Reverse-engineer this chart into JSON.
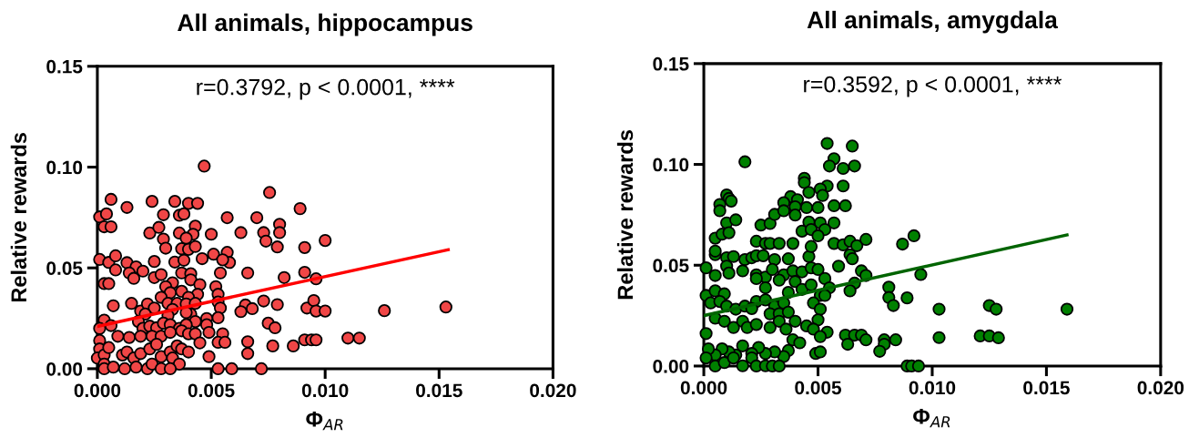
{
  "chart_data": [
    {
      "type": "scatter",
      "title": "All animals, hippocampus",
      "xlabel": "Φ$_{AR}$",
      "ylabel": "Relative rewards",
      "xlim": [
        0,
        0.02
      ],
      "ylim": [
        0,
        0.15
      ],
      "xticks": [
        {
          "value": 0,
          "label": "0.000"
        },
        {
          "value": 0.005,
          "label": "0.005"
        },
        {
          "value": 0.01,
          "label": "0.010"
        },
        {
          "value": 0.015,
          "label": "0.015"
        },
        {
          "value": 0.02,
          "label": "0.020"
        }
      ],
      "yticks": [
        {
          "value": 0,
          "label": "0.00"
        },
        {
          "value": 0.05,
          "label": "0.05"
        },
        {
          "value": 0.1,
          "label": "0.10"
        },
        {
          "value": 0.15,
          "label": "0.15"
        }
      ],
      "annotations": [
        "r=0.3792, p < 0.0001, ****"
      ],
      "series": [
        {
          "marker": "circle",
          "color": "#f04646",
          "x": [
            0.00469,
            0.00756,
            0.0006,
            0.0013,
            0.0024,
            0.0034,
            0.004,
            0.0044,
            0.0089,
            0.0001,
            0.0004,
            0.0003,
            0.0006,
            0.0029,
            0.0036,
            0.0038,
            0.0057,
            0.007,
            0.008,
            0.008,
            0.0023,
            0.0027,
            0.0036,
            0.0043,
            0.0042,
            0.0039,
            0.0029,
            0.003,
            0.005,
            0.0063,
            0.0073,
            0.0074,
            0.0079,
            0.0091,
            0.01,
            0.0037,
            0.004,
            0.0043,
            0.0051,
            0.0057,
            0.0058,
            0.0055,
            0.0046,
            0.0034,
            0.0038,
            0.0025,
            0.0001,
            0.0005,
            0.0008,
            0.0013,
            0.0008,
            0.0017,
            0.0014,
            0.002,
            0.0016,
            0.0025,
            0.0028,
            0.0037,
            0.0041,
            0.0041,
            0.0054,
            0.0066,
            0.0082,
            0.0091,
            0.0096,
            0.0003,
            0.0005,
            0.0033,
            0.003,
            0.0037,
            0.0045,
            0.0044,
            0.0052,
            0.0053,
            0.0032,
            0.0028,
            0.004,
            0.0053,
            0.0054,
            0.0053,
            0.0065,
            0.0068,
            0.0063,
            0.0073,
            0.0079,
            0.0092,
            0.0095,
            0.0096,
            0.01,
            0.0007,
            0.0015,
            0.0019,
            0.0022,
            0.0025,
            0.0021,
            0.0031,
            0.0035,
            0.0039,
            0.0033,
            0.0031,
            0.0041,
            0.0043,
            0.0039,
            0.0043,
            0.0003,
            0.0006,
            0.0001,
            0.0018,
            0.002,
            0.0023,
            0.0026,
            0.0029,
            0.0032,
            0.0036,
            0.0039,
            0.0048,
            0.0048,
            0.0075,
            0.0078,
            0.0009,
            0.0014,
            0.0019,
            0.0024,
            0.0028,
            0.0032,
            0.0037,
            0.004,
            0.0043,
            0.0045,
            0.0049,
            0.0055,
            0.0053,
            0.0056,
            0.0066,
            0.0077,
            0.0086,
            0.0091,
            0.0094,
            0.0096,
            0.011,
            0.0115,
            0.0153,
            0.0126,
            0.0001,
            0.0001,
            0.0,
            0.0003,
            0.0005,
            0.0003,
            0.0011,
            0.0013,
            0.0016,
            0.0019,
            0.0023,
            0.0026,
            0.0028,
            0.0032,
            0.0035,
            0.0037,
            0.004,
            0.0033,
            0.0036,
            0.0049,
            0.0066,
            0.0053,
            0.0059,
            0.0072,
            0.0003,
            0.0007,
            0.0012,
            0.0017,
            0.0022,
            0.0024,
            0.0028,
            0.0032
          ],
          "values": [
            0.1005,
            0.0874,
            0.084,
            0.08,
            0.083,
            0.083,
            0.082,
            0.082,
            0.0794,
            0.0753,
            0.0768,
            0.0704,
            0.0704,
            0.0764,
            0.0761,
            0.0768,
            0.0749,
            0.0749,
            0.0716,
            0.0675,
            0.0673,
            0.0701,
            0.0673,
            0.0707,
            0.0667,
            0.0648,
            0.0643,
            0.0598,
            0.0667,
            0.0675,
            0.0675,
            0.0633,
            0.0604,
            0.0601,
            0.0636,
            0.0595,
            0.0592,
            0.0606,
            0.0568,
            0.0577,
            0.0527,
            0.054,
            0.0546,
            0.0529,
            0.0538,
            0.0532,
            0.0542,
            0.0527,
            0.056,
            0.0526,
            0.049,
            0.0505,
            0.0475,
            0.0484,
            0.0448,
            0.0452,
            0.0467,
            0.0475,
            0.0471,
            0.0441,
            0.0475,
            0.0475,
            0.0452,
            0.0478,
            0.0446,
            0.0422,
            0.0422,
            0.0426,
            0.0407,
            0.0384,
            0.0417,
            0.0369,
            0.0407,
            0.0369,
            0.0377,
            0.0354,
            0.0354,
            0.0331,
            0.0301,
            0.0253,
            0.0316,
            0.0298,
            0.0283,
            0.0336,
            0.0318,
            0.0301,
            0.0338,
            0.0286,
            0.0286,
            0.0312,
            0.0324,
            0.0286,
            0.0321,
            0.0301,
            0.0271,
            0.0324,
            0.0324,
            0.0321,
            0.0294,
            0.0264,
            0.0271,
            0.0324,
            0.0279,
            0.0234,
            0.0241,
            0.0214,
            0.02,
            0.0234,
            0.02,
            0.0211,
            0.0203,
            0.0226,
            0.0218,
            0.02,
            0.0218,
            0.0249,
            0.0218,
            0.0226,
            0.0203,
            0.0161,
            0.0155,
            0.0161,
            0.0161,
            0.0161,
            0.018,
            0.0188,
            0.0173,
            0.0173,
            0.0128,
            0.018,
            0.0173,
            0.0131,
            0.0131,
            0.0134,
            0.0113,
            0.0113,
            0.0143,
            0.0143,
            0.0143,
            0.0152,
            0.0152,
            0.0306,
            0.0288,
            0.014,
            0.0098,
            0.0053,
            0.0068,
            0.0105,
            0.0023,
            0.0068,
            0.0083,
            0.0053,
            0.0075,
            0.0098,
            0.0121,
            0.006,
            0.0083,
            0.0113,
            0.0098,
            0.0083,
            0.0053,
            0.0023,
            0.006,
            0.0075,
            0.0,
            0.0,
            0.0,
            0.0,
            0.0008,
            0.0,
            0.0008,
            0.0,
            0.0023,
            0.0,
            0.0
          ]
        },
        {
          "type": "line",
          "color": "#ff0000",
          "x": [
            0,
            0.0154
          ],
          "values": [
            0.021,
            0.059
          ]
        }
      ]
    },
    {
      "type": "scatter",
      "title": "All animals, amygdala",
      "xlabel": "Φ$_{AR}$",
      "ylabel": "Relative rewards",
      "xlim": [
        0,
        0.02
      ],
      "ylim": [
        0,
        0.15
      ],
      "xticks": [
        {
          "value": 0,
          "label": "0.000"
        },
        {
          "value": 0.005,
          "label": "0.005"
        },
        {
          "value": 0.01,
          "label": "0.010"
        },
        {
          "value": 0.015,
          "label": "0.015"
        },
        {
          "value": 0.02,
          "label": "0.020"
        }
      ],
      "yticks": [
        {
          "value": 0,
          "label": "0.00"
        },
        {
          "value": 0.05,
          "label": "0.05"
        },
        {
          "value": 0.1,
          "label": "0.10"
        },
        {
          "value": 0.15,
          "label": "0.15"
        }
      ],
      "annotations": [
        "r=0.3592, p < 0.0001, ****"
      ],
      "series": [
        {
          "marker": "circle",
          "color": "#008000",
          "x": [
            0.0054,
            0.0065,
            0.0018,
            0.0057,
            0.0055,
            0.0061,
            0.0066,
            0.0044,
            0.0044,
            0.0054,
            0.0051,
            0.0052,
            0.0061,
            0.0046,
            0.0038,
            0.0035,
            0.0041,
            0.001,
            0.0011,
            0.0007,
            0.0007,
            0.0012,
            0.001,
            0.0014,
            0.0025,
            0.0029,
            0.0031,
            0.0035,
            0.004,
            0.0045,
            0.005,
            0.0057,
            0.0062,
            0.004,
            0.0046,
            0.0051,
            0.0057,
            0.0005,
            0.0008,
            0.0011,
            0.0023,
            0.0027,
            0.0029,
            0.0033,
            0.0039,
            0.0043,
            0.0047,
            0.0053,
            0.0057,
            0.0061,
            0.0064,
            0.0067,
            0.0071,
            0.0087,
            0.0092,
            0.0005,
            0.0005,
            0.001,
            0.0013,
            0.0018,
            0.0021,
            0.0023,
            0.0026,
            0.0031,
            0.0037,
            0.0046,
            0.0047,
            0.005,
            0.0064,
            0.0065,
            0.0001,
            0.0005,
            0.001,
            0.0011,
            0.0017,
            0.0023,
            0.0027,
            0.003,
            0.0035,
            0.0039,
            0.0043,
            0.0047,
            0.005,
            0.0059,
            0.0069,
            0.0071,
            0.0066,
            0.0064,
            0.0095,
            0.0081,
            0.0081,
            0.0083,
            0.0089,
            0.0023,
            0.0027,
            0.0033,
            0.0037,
            0.004,
            0.0043,
            0.0047,
            0.0053,
            0.0055,
            0.0051,
            0.0053,
            0.0001,
            0.0005,
            0.0009,
            0.0003,
            0.0007,
            0.001,
            0.0014,
            0.0018,
            0.0023,
            0.0021,
            0.0027,
            0.0031,
            0.0035,
            0.0029,
            0.0033,
            0.0037,
            0.0048,
            0.0051,
            0.005,
            0.004,
            0.0045,
            0.0048,
            0.0054,
            0.0051,
            0.0062,
            0.0066,
            0.0069,
            0.0071,
            0.0063,
            0.0079,
            0.0079,
            0.0084,
            0.0077,
            0.0103,
            0.0103,
            0.0049,
            0.0051,
            0.0039,
            0.0042,
            0.0037,
            0.0035,
            0.0031,
            0.0027,
            0.0024,
            0.0021,
            0.0017,
            0.0014,
            0.0011,
            0.0008,
            0.0005,
            0.0002,
            0.0001,
            0.0001,
            0.0005,
            0.0009,
            0.0013,
            0.0017,
            0.0021,
            0.0023,
            0.0027,
            0.003,
            0.0033,
            0.0089,
            0.0091,
            0.0094,
            0.0005,
            0.0009,
            0.0013,
            0.0017,
            0.0019,
            0.0023,
            0.0029,
            0.0033,
            0.0036,
            0.0125,
            0.0128,
            0.0159,
            0.0121,
            0.0125,
            0.0129
          ],
          "values": [
            0.1104,
            0.1091,
            0.1013,
            0.1028,
            0.0992,
            0.098,
            0.0992,
            0.0931,
            0.091,
            0.0893,
            0.0878,
            0.0846,
            0.0893,
            0.0861,
            0.084,
            0.081,
            0.0825,
            0.0849,
            0.0831,
            0.0801,
            0.077,
            0.0818,
            0.071,
            0.0725,
            0.0699,
            0.0707,
            0.0752,
            0.077,
            0.079,
            0.0786,
            0.0786,
            0.0795,
            0.0795,
            0.0749,
            0.0714,
            0.071,
            0.071,
            0.0634,
            0.0654,
            0.0661,
            0.0619,
            0.0608,
            0.0608,
            0.0608,
            0.0608,
            0.0669,
            0.0677,
            0.0677,
            0.0608,
            0.0601,
            0.0619,
            0.0597,
            0.0628,
            0.0605,
            0.0646,
            0.0552,
            0.057,
            0.0537,
            0.0543,
            0.0528,
            0.0537,
            0.0547,
            0.0547,
            0.0528,
            0.0532,
            0.0543,
            0.0593,
            0.0646,
            0.0552,
            0.0532,
            0.0487,
            0.0449,
            0.0495,
            0.0461,
            0.0472,
            0.0452,
            0.0441,
            0.0479,
            0.0452,
            0.0472,
            0.0467,
            0.0487,
            0.0479,
            0.0495,
            0.0472,
            0.0449,
            0.0411,
            0.0373,
            0.0454,
            0.0391,
            0.034,
            0.03,
            0.0338,
            0.0434,
            0.0388,
            0.0426,
            0.0365,
            0.0419,
            0.038,
            0.0403,
            0.0434,
            0.0388,
            0.035,
            0.035,
            0.035,
            0.0373,
            0.0358,
            0.0313,
            0.032,
            0.0297,
            0.0282,
            0.0297,
            0.032,
            0.0285,
            0.0328,
            0.0297,
            0.0313,
            0.0259,
            0.0259,
            0.0267,
            0.0313,
            0.0282,
            0.0229,
            0.0222,
            0.0199,
            0.0183,
            0.0168,
            0.0146,
            0.0153,
            0.0153,
            0.0153,
            0.013,
            0.0108,
            0.013,
            0.0108,
            0.013,
            0.0073,
            0.0282,
            0.0141,
            0.0062,
            0.007,
            0.013,
            0.0115,
            0.0077,
            0.0047,
            0.007,
            0.0062,
            0.0092,
            0.0062,
            0.01,
            0.0055,
            0.007,
            0.0085,
            0.0055,
            0.0085,
            0.0161,
            0.004,
            0.0,
            0.0017,
            0.004,
            0.0001,
            0.004,
            0.0,
            0.0001,
            0.0,
            0.0,
            0.0,
            0.0,
            0.0,
            0.0237,
            0.0222,
            0.0191,
            0.0222,
            0.0191,
            0.0206,
            0.0191,
            0.0222,
            0.0183,
            0.03,
            0.0282,
            0.0282,
            0.0149,
            0.0149,
            0.014
          ]
        },
        {
          "type": "line",
          "color": "#006400",
          "x": [
            0,
            0.0159
          ],
          "values": [
            0.025,
            0.065
          ]
        }
      ]
    }
  ]
}
